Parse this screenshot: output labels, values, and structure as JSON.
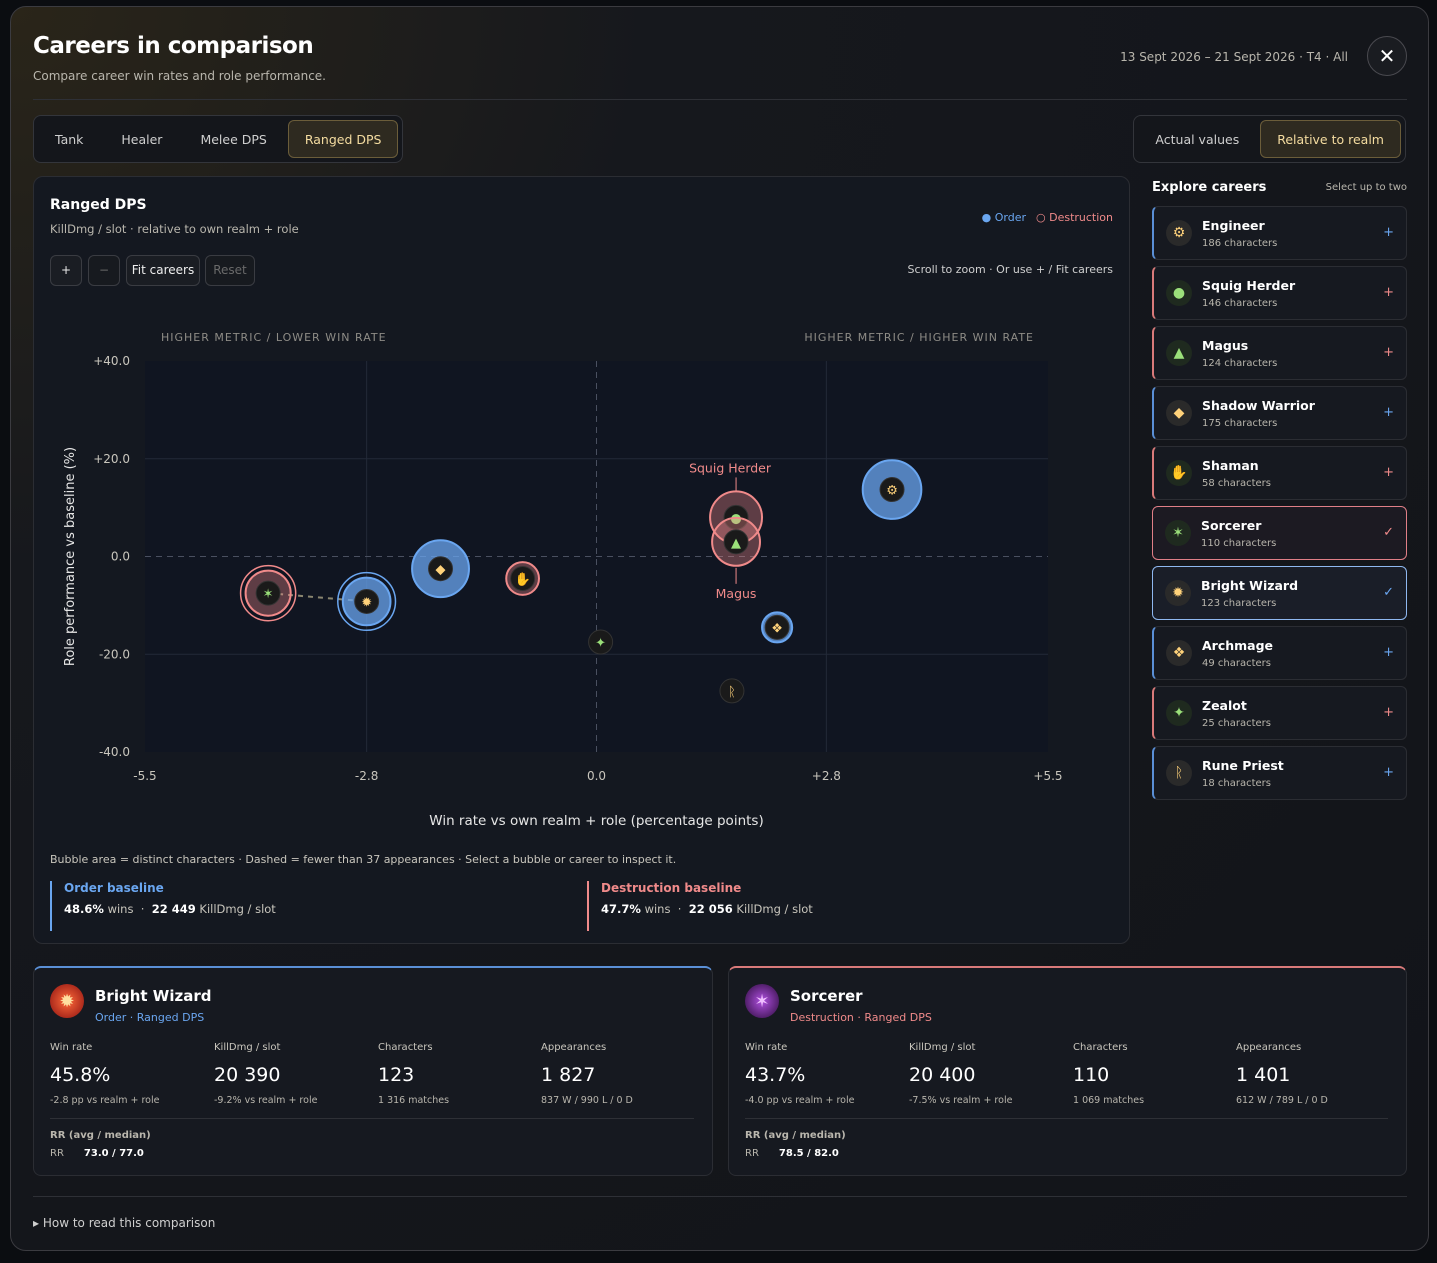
{
  "header": {
    "title": "Careers in comparison",
    "subtitle": "Compare career win rates and role performance.",
    "date_range": "13 Sept 2026 – 21 Sept 2026 · T4 · All",
    "close_label": "✕"
  },
  "role_tabs": [
    "Tank",
    "Healer",
    "Melee DPS",
    "Ranged DPS"
  ],
  "active_role": "Ranged DPS",
  "value_modes": [
    "Actual values",
    "Relative to realm"
  ],
  "active_mode": "Relative to realm",
  "chart_panel": {
    "title": "Ranged DPS",
    "subtitle": "KillDmg / slot · relative to own realm + role",
    "legend_order": "● Order",
    "legend_destruction": "○ Destruction",
    "zoom_in": "+",
    "zoom_out": "−",
    "fit": "Fit careers",
    "reset": "Reset",
    "hint": "Scroll to zoom · Or use + / Fit careers",
    "note": "Bubble area = distinct characters · Dashed = fewer than 37 appearances · Select a bubble or career to inspect it.",
    "order_baseline": {
      "title": "Order baseline",
      "wins": "48.6%",
      "wins_label": "wins",
      "sep": "·",
      "killdmg": "22 449",
      "killdmg_label": "KillDmg / slot"
    },
    "destruction_baseline": {
      "title": "Destruction baseline",
      "wins": "47.7%",
      "wins_label": "wins",
      "sep": "·",
      "killdmg": "22 056",
      "killdmg_label": "KillDmg / slot"
    }
  },
  "colors": {
    "order": "#6aa6f0",
    "destruction": "#f08a8a",
    "accent": "#f4dca0"
  },
  "chart_data": {
    "type": "scatter",
    "xlabel": "Win rate vs own realm + role (percentage points)",
    "ylabel": "Role performance vs baseline (%)",
    "xlim": [
      -5.5,
      5.5
    ],
    "ylim": [
      -40,
      40
    ],
    "x_ticks": [
      "-5.5",
      "-2.8",
      "0.0",
      "+2.8",
      "+5.5"
    ],
    "y_ticks": [
      "+40.0",
      "+20.0",
      "0.0",
      "-20.0",
      "-40.0"
    ],
    "quadrant_top_left": "HIGHER METRIC / LOWER WIN RATE",
    "quadrant_top_right": "HIGHER METRIC / HIGHER WIN RATE",
    "grid": true,
    "points": [
      {
        "name": "Engineer",
        "realm": "order",
        "x": 3.6,
        "y": 13.7,
        "characters": 186
      },
      {
        "name": "Squig Herder",
        "realm": "destruction",
        "x": 1.7,
        "y": 8.0,
        "characters": 146
      },
      {
        "name": "Magus",
        "realm": "destruction",
        "x": 1.7,
        "y": 3.0,
        "characters": 124
      },
      {
        "name": "Shadow Warrior",
        "realm": "order",
        "x": -1.9,
        "y": -2.5,
        "characters": 175
      },
      {
        "name": "Shaman",
        "realm": "destruction",
        "x": -0.9,
        "y": -4.5,
        "characters": 58
      },
      {
        "name": "Sorcerer",
        "realm": "destruction",
        "x": -4.0,
        "y": -7.5,
        "characters": 110
      },
      {
        "name": "Bright Wizard",
        "realm": "order",
        "x": -2.8,
        "y": -9.2,
        "characters": 123
      },
      {
        "name": "Archmage",
        "realm": "order",
        "x": 2.2,
        "y": -14.5,
        "characters": 49
      },
      {
        "name": "Zealot",
        "realm": "destruction",
        "x": 0.05,
        "y": -17.5,
        "characters": 25
      },
      {
        "name": "Rune Priest",
        "realm": "order",
        "x": 1.65,
        "y": -27.5,
        "characters": 18
      }
    ],
    "labeled_points": {
      "Squig Herder": "Squig Herder",
      "Magus": "Magus"
    }
  },
  "explore": {
    "title": "Explore careers",
    "hint": "Select up to two",
    "careers": [
      {
        "name": "Engineer",
        "count": "186 characters",
        "realm": "order",
        "icon": "wrench-icon",
        "glyph": "⚙",
        "action": "+"
      },
      {
        "name": "Squig Herder",
        "count": "146 characters",
        "realm": "dest",
        "icon": "squig-icon",
        "glyph": "●",
        "action": "+"
      },
      {
        "name": "Magus",
        "count": "124 characters",
        "realm": "dest",
        "icon": "magus-icon",
        "glyph": "▲",
        "action": "+"
      },
      {
        "name": "Shadow Warrior",
        "count": "175 characters",
        "realm": "order",
        "icon": "hood-icon",
        "glyph": "◆",
        "action": "+"
      },
      {
        "name": "Shaman",
        "count": "58 characters",
        "realm": "dest",
        "icon": "hand-icon",
        "glyph": "✋",
        "action": "+"
      },
      {
        "name": "Sorcerer",
        "count": "110 characters",
        "realm": "dest",
        "icon": "sorcerer-icon",
        "glyph": "✶",
        "action": "✓",
        "selected": true
      },
      {
        "name": "Bright Wizard",
        "count": "123 characters",
        "realm": "order",
        "icon": "flame-icon",
        "glyph": "✹",
        "action": "✓",
        "selected": true
      },
      {
        "name": "Archmage",
        "count": "49 characters",
        "realm": "order",
        "icon": "wings-icon",
        "glyph": "❖",
        "action": "+"
      },
      {
        "name": "Zealot",
        "count": "25 characters",
        "realm": "dest",
        "icon": "claw-icon",
        "glyph": "✦",
        "action": "+"
      },
      {
        "name": "Rune Priest",
        "count": "18 characters",
        "realm": "order",
        "icon": "rune-icon",
        "glyph": "ᚱ",
        "action": "+"
      }
    ]
  },
  "cards": [
    {
      "name": "Bright Wizard",
      "sub": "Order · Ranged DPS",
      "stats": [
        {
          "label": "Win rate",
          "value": "45.8%",
          "detail": "-2.8 pp vs realm + role"
        },
        {
          "label": "KillDmg / slot",
          "value": "20 390",
          "detail": "-9.2% vs realm + role"
        },
        {
          "label": "Characters",
          "value": "123",
          "detail": "1 316 matches"
        },
        {
          "label": "Appearances",
          "value": "1 827",
          "detail": "837 W / 990 L / 0 D"
        }
      ],
      "rr_label": "RR (avg / median)",
      "rr_prefix": "RR",
      "rr_value": "73.0 / 77.0"
    },
    {
      "name": "Sorcerer",
      "sub": "Destruction · Ranged DPS",
      "stats": [
        {
          "label": "Win rate",
          "value": "43.7%",
          "detail": "-4.0 pp vs realm + role"
        },
        {
          "label": "KillDmg / slot",
          "value": "20 400",
          "detail": "-7.5% vs realm + role"
        },
        {
          "label": "Characters",
          "value": "110",
          "detail": "1 069 matches"
        },
        {
          "label": "Appearances",
          "value": "1 401",
          "detail": "612 W / 789 L / 0 D"
        }
      ],
      "rr_label": "RR (avg / median)",
      "rr_prefix": "RR",
      "rr_value": "78.5 / 82.0"
    }
  ],
  "footer": {
    "label": "▸ How to read this comparison"
  }
}
